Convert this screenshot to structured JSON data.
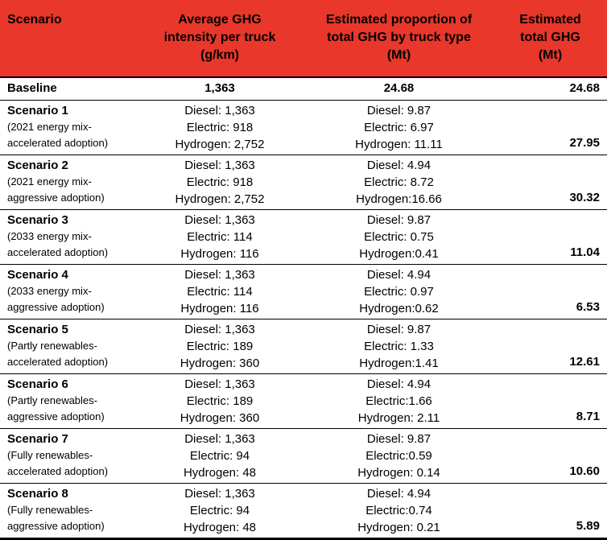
{
  "accent_color": "#e9372b",
  "table": {
    "header": {
      "scenario": "Scenario",
      "col2": [
        "Average GHG",
        "intensity per truck",
        "(g/km)"
      ],
      "col3": [
        "Estimated proportion of",
        "total GHG by truck type",
        "(Mt)"
      ],
      "col4": [
        "Estimated",
        "total GHG",
        "(Mt)"
      ]
    },
    "rows": [
      {
        "name": "Baseline",
        "intensity": [
          "1,363"
        ],
        "proportion": [
          "24.68"
        ],
        "total": "24.68"
      },
      {
        "name": "Scenario 1",
        "subtitle": [
          "(2021 energy mix-",
          "accelerated adoption)"
        ],
        "intensity": [
          "Diesel: 1,363",
          "Electric: 918",
          "Hydrogen: 2,752"
        ],
        "proportion": [
          "Diesel: 9.87",
          "Electric: 6.97",
          "Hydrogen: 11.11"
        ],
        "total": "27.95"
      },
      {
        "name": "Scenario 2",
        "subtitle": [
          "(2021 energy mix-",
          "aggressive adoption)"
        ],
        "intensity": [
          "Diesel: 1,363",
          "Electric: 918",
          "Hydrogen: 2,752"
        ],
        "proportion": [
          "Diesel: 4.94",
          "Electric: 8.72",
          "Hydrogen:16.66"
        ],
        "total": "30.32"
      },
      {
        "name": "Scenario 3",
        "subtitle": [
          "(2033 energy mix-",
          "accelerated adoption)"
        ],
        "intensity": [
          "Diesel: 1,363",
          "Electric: 114",
          "Hydrogen: 116"
        ],
        "proportion": [
          "Diesel: 9.87",
          "Electric: 0.75",
          "Hydrogen:0.41"
        ],
        "total": "11.04"
      },
      {
        "name": "Scenario 4",
        "subtitle": [
          "(2033 energy mix-",
          "aggressive adoption)"
        ],
        "intensity": [
          "Diesel: 1,363",
          "Electric: 114",
          "Hydrogen: 116"
        ],
        "proportion": [
          "Diesel: 4.94",
          "Electric: 0.97",
          "Hydrogen:0.62"
        ],
        "total": "6.53"
      },
      {
        "name": "Scenario 5",
        "subtitle": [
          "(Partly renewables-",
          "accelerated adoption)"
        ],
        "intensity": [
          "Diesel: 1,363",
          "Electric: 189",
          "Hydrogen: 360"
        ],
        "proportion": [
          "Diesel: 9.87",
          "Electric: 1.33",
          "Hydrogen:1.41"
        ],
        "total": "12.61"
      },
      {
        "name": "Scenario 6",
        "subtitle": [
          "(Partly renewables-",
          "aggressive adoption)"
        ],
        "intensity": [
          "Diesel: 1,363",
          "Electric: 189",
          "Hydrogen: 360"
        ],
        "proportion": [
          "Diesel: 4.94",
          "Electric:1.66",
          "Hydrogen: 2.11"
        ],
        "total": "8.71"
      },
      {
        "name": "Scenario 7",
        "subtitle": [
          "(Fully renewables-",
          "accelerated adoption)"
        ],
        "intensity": [
          "Diesel: 1,363",
          "Electric: 94",
          "Hydrogen: 48"
        ],
        "proportion": [
          "Diesel: 9.87",
          "Electric:0.59",
          "Hydrogen: 0.14"
        ],
        "total": "10.60"
      },
      {
        "name": "Scenario 8",
        "subtitle": [
          "(Fully renewables-",
          "aggressive adoption)"
        ],
        "intensity": [
          "Diesel: 1,363",
          "Electric: 94",
          "Hydrogen: 48"
        ],
        "proportion": [
          "Diesel: 4.94",
          "Electric:0.74",
          "Hydrogen: 0.21"
        ],
        "total": "5.89"
      }
    ]
  },
  "chart_data": {
    "type": "table",
    "columns": [
      "Scenario",
      "Average GHG intensity per truck (g/km)",
      "Estimated proportion of total GHG by truck type (Mt)",
      "Estimated total GHG (Mt)"
    ],
    "rows": [
      {
        "scenario": "Baseline",
        "description": "",
        "avg_ghg_intensity_g_per_km": {
          "overall": 1363
        },
        "ghg_by_truck_type_mt": {
          "overall": 24.68
        },
        "estimated_total_ghg_mt": 24.68
      },
      {
        "scenario": "Scenario 1",
        "description": "2021 energy mix - accelerated adoption",
        "avg_ghg_intensity_g_per_km": {
          "diesel": 1363,
          "electric": 918,
          "hydrogen": 2752
        },
        "ghg_by_truck_type_mt": {
          "diesel": 9.87,
          "electric": 6.97,
          "hydrogen": 11.11
        },
        "estimated_total_ghg_mt": 27.95
      },
      {
        "scenario": "Scenario 2",
        "description": "2021 energy mix - aggressive adoption",
        "avg_ghg_intensity_g_per_km": {
          "diesel": 1363,
          "electric": 918,
          "hydrogen": 2752
        },
        "ghg_by_truck_type_mt": {
          "diesel": 4.94,
          "electric": 8.72,
          "hydrogen": 16.66
        },
        "estimated_total_ghg_mt": 30.32
      },
      {
        "scenario": "Scenario 3",
        "description": "2033 energy mix - accelerated adoption",
        "avg_ghg_intensity_g_per_km": {
          "diesel": 1363,
          "electric": 114,
          "hydrogen": 116
        },
        "ghg_by_truck_type_mt": {
          "diesel": 9.87,
          "electric": 0.75,
          "hydrogen": 0.41
        },
        "estimated_total_ghg_mt": 11.04
      },
      {
        "scenario": "Scenario 4",
        "description": "2033 energy mix - aggressive adoption",
        "avg_ghg_intensity_g_per_km": {
          "diesel": 1363,
          "electric": 114,
          "hydrogen": 116
        },
        "ghg_by_truck_type_mt": {
          "diesel": 4.94,
          "electric": 0.97,
          "hydrogen": 0.62
        },
        "estimated_total_ghg_mt": 6.53
      },
      {
        "scenario": "Scenario 5",
        "description": "Partly renewables - accelerated adoption",
        "avg_ghg_intensity_g_per_km": {
          "diesel": 1363,
          "electric": 189,
          "hydrogen": 360
        },
        "ghg_by_truck_type_mt": {
          "diesel": 9.87,
          "electric": 1.33,
          "hydrogen": 1.41
        },
        "estimated_total_ghg_mt": 12.61
      },
      {
        "scenario": "Scenario 6",
        "description": "Partly renewables - aggressive adoption",
        "avg_ghg_intensity_g_per_km": {
          "diesel": 1363,
          "electric": 189,
          "hydrogen": 360
        },
        "ghg_by_truck_type_mt": {
          "diesel": 4.94,
          "electric": 1.66,
          "hydrogen": 2.11
        },
        "estimated_total_ghg_mt": 8.71
      },
      {
        "scenario": "Scenario 7",
        "description": "Fully renewables - accelerated adoption",
        "avg_ghg_intensity_g_per_km": {
          "diesel": 1363,
          "electric": 94,
          "hydrogen": 48
        },
        "ghg_by_truck_type_mt": {
          "diesel": 9.87,
          "electric": 0.59,
          "hydrogen": 0.14
        },
        "estimated_total_ghg_mt": 10.6
      },
      {
        "scenario": "Scenario 8",
        "description": "Fully renewables - aggressive adoption",
        "avg_ghg_intensity_g_per_km": {
          "diesel": 1363,
          "electric": 94,
          "hydrogen": 48
        },
        "ghg_by_truck_type_mt": {
          "diesel": 4.94,
          "electric": 0.74,
          "hydrogen": 0.21
        },
        "estimated_total_ghg_mt": 5.89
      }
    ]
  }
}
